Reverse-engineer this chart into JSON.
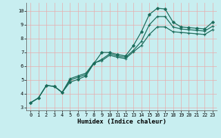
{
  "xlabel": "Humidex (Indice chaleur)",
  "xlim": [
    -0.5,
    23.5
  ],
  "ylim": [
    2.8,
    10.6
  ],
  "yticks": [
    3,
    4,
    5,
    6,
    7,
    8,
    9,
    10
  ],
  "xticks": [
    0,
    1,
    2,
    3,
    4,
    5,
    6,
    7,
    8,
    9,
    10,
    11,
    12,
    13,
    14,
    15,
    16,
    17,
    18,
    19,
    20,
    21,
    22,
    23
  ],
  "bg_color": "#c8eef0",
  "grid_color": "#e8aaaa",
  "line_color": "#1a6b5a",
  "line1_x": [
    0,
    1,
    2,
    3,
    4,
    5,
    6,
    7,
    8,
    9,
    10,
    11,
    12,
    13,
    14,
    15,
    16,
    17,
    18,
    19,
    20,
    21,
    22,
    23
  ],
  "line1_y": [
    3.35,
    3.7,
    4.6,
    4.55,
    4.1,
    4.85,
    5.05,
    5.3,
    6.2,
    7.0,
    7.0,
    6.85,
    6.75,
    7.5,
    8.5,
    9.75,
    10.2,
    10.15,
    9.2,
    8.85,
    8.8,
    8.75,
    8.7,
    9.2
  ],
  "line2_x": [
    0,
    1,
    2,
    3,
    4,
    5,
    6,
    7,
    8,
    9,
    10,
    11,
    12,
    13,
    14,
    15,
    16,
    17,
    18,
    19,
    20,
    21,
    22,
    23
  ],
  "line2_y": [
    3.35,
    3.7,
    4.6,
    4.55,
    4.1,
    5.0,
    5.2,
    5.4,
    6.2,
    6.5,
    6.9,
    6.75,
    6.65,
    7.15,
    7.8,
    9.0,
    9.6,
    9.6,
    8.85,
    8.7,
    8.65,
    8.6,
    8.55,
    8.9
  ],
  "line3_x": [
    0,
    1,
    2,
    3,
    4,
    5,
    6,
    7,
    8,
    9,
    10,
    11,
    12,
    13,
    14,
    15,
    16,
    17,
    18,
    19,
    20,
    21,
    22,
    23
  ],
  "line3_y": [
    3.35,
    3.7,
    4.6,
    4.55,
    4.1,
    5.1,
    5.3,
    5.5,
    6.25,
    6.4,
    6.8,
    6.65,
    6.55,
    7.05,
    7.5,
    8.3,
    8.85,
    8.85,
    8.5,
    8.45,
    8.4,
    8.35,
    8.3,
    8.65
  ]
}
